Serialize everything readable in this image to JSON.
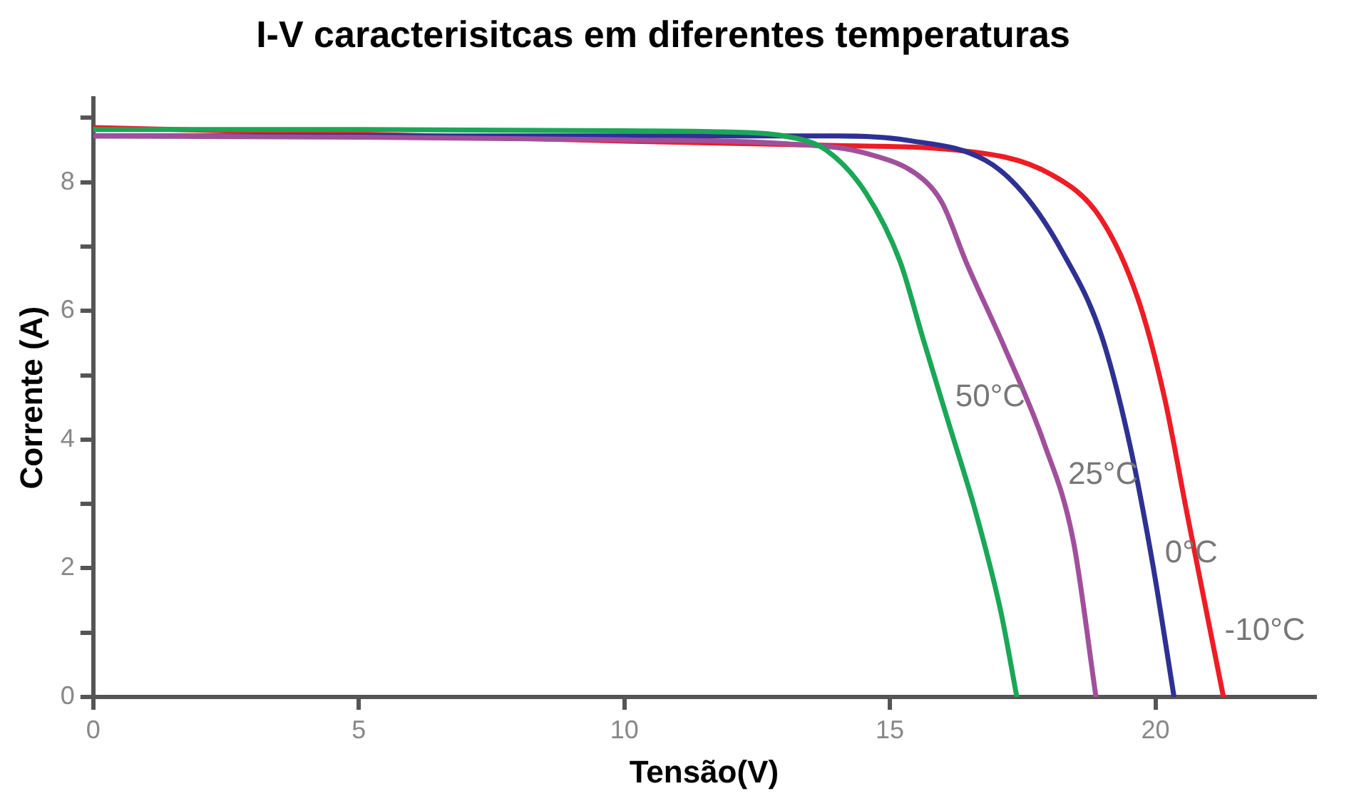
{
  "chart_data": {
    "type": "line",
    "title": "I-V caracterisitcas em diferentes temperaturas",
    "xlabel": "Tensão(V)",
    "ylabel": "Corrente (A)",
    "xlim": [
      0,
      23
    ],
    "xticks": [
      0,
      5,
      10,
      15,
      20
    ],
    "ylim": [
      0,
      9.3
    ],
    "yticks": [
      0,
      {
        "value": 1,
        "label": null
      },
      2,
      {
        "value": 3,
        "label": null
      },
      4,
      {
        "value": 5,
        "label": null
      },
      6,
      {
        "value": 7,
        "label": null
      },
      8,
      {
        "value": 9,
        "label": null
      }
    ],
    "marker": "none",
    "line_style": "solid",
    "legend": false,
    "series": [
      {
        "name": "50°C",
        "color": "#1aa757",
        "x": [
          0,
          5,
          10,
          12,
          13,
          13.8,
          14.55,
          15.19,
          15.62,
          16.09,
          16.63,
          17.09,
          17.39
        ],
        "values": [
          8.82,
          8.82,
          8.8,
          8.78,
          8.72,
          8.5,
          7.83,
          6.77,
          5.58,
          4.3,
          2.83,
          1.32,
          0
        ]
      },
      {
        "name": "25°C",
        "color": "#a0509b",
        "x": [
          0,
          5,
          10,
          13,
          14.55,
          15.62,
          15.99,
          16.43,
          17.16,
          17.9,
          18.45,
          18.88
        ],
        "values": [
          8.72,
          8.7,
          8.66,
          8.6,
          8.45,
          8.05,
          7.67,
          6.77,
          5.43,
          3.95,
          2.44,
          0
        ]
      },
      {
        "name": "0°C",
        "color": "#2e3192",
        "x": [
          0,
          5,
          10,
          14,
          15.35,
          16.8,
          17.51,
          18.24,
          18.97,
          19.51,
          19.95,
          20.35
        ],
        "values": [
          8.72,
          8.72,
          8.72,
          8.72,
          8.65,
          8.34,
          7.83,
          6.93,
          5.65,
          3.95,
          2.06,
          0
        ]
      },
      {
        "name": "-10°C",
        "color": "#ee1c25",
        "x": [
          0,
          5,
          10,
          14,
          16.25,
          18.04,
          18.97,
          19.67,
          20.16,
          20.6,
          21.28
        ],
        "values": [
          8.85,
          8.75,
          8.64,
          8.57,
          8.5,
          8.12,
          7.44,
          6.19,
          4.69,
          2.83,
          0
        ]
      }
    ]
  }
}
